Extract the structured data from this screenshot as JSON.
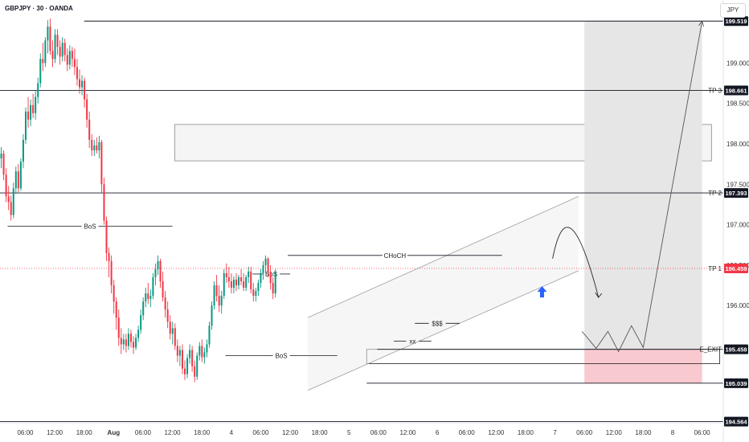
{
  "header": {
    "title": "GBPJPY · 30 · OANDA",
    "currency": "JPY"
  },
  "colors": {
    "up": "#089981",
    "down": "#f23645",
    "line": "#131722",
    "box_gray": "#e6e6e6",
    "box_red": "#f8c9cf",
    "price_red": "#f23645",
    "arrow_blue": "#2962ff"
  },
  "chart_data": {
    "type": "candlestick",
    "title": "GBPJPY · 30 · OANDA",
    "symbol": "GBPJPY",
    "timeframe": "30",
    "exchange": "OANDA",
    "currency": "JPY",
    "ylim": [
      194.55,
      199.78
    ],
    "y_ticks": [
      195.5,
      196.0,
      196.5,
      197.0,
      197.5,
      198.0,
      198.5,
      199.0
    ],
    "y_tick_labels": [
      "",
      "196.000",
      "196.500",
      "197.000",
      "197.500",
      "198.000",
      "198.500",
      "199.000"
    ],
    "x_ticks": [
      "06:00",
      "12:00",
      "18:00",
      "Aug",
      "06:00",
      "12:00",
      "18:00",
      "4",
      "06:00",
      "12:00",
      "18:00",
      "5",
      "06:00",
      "12:00",
      "6",
      "06:00",
      "12:00",
      "18:00",
      "7",
      "06:00",
      "12:00",
      "18:00",
      "8",
      "06:00"
    ],
    "x_tick_positions": [
      0.25,
      0.5,
      0.75,
      1.0,
      1.25,
      1.5,
      1.75,
      2.0,
      2.25,
      2.5,
      2.75,
      3.0,
      3.25,
      3.5,
      3.75,
      4.0,
      4.25,
      4.5,
      4.75,
      5.0,
      5.25,
      5.5,
      5.75,
      6.0
    ],
    "x_unit": "trading days since Jul 31 00:00",
    "xlim": [
      0.035,
      6.18
    ],
    "candle_width_days": 0.0208,
    "candles_ohlc": [
      [
        197.82,
        197.96,
        197.7,
        197.88
      ],
      [
        197.88,
        197.92,
        197.55,
        197.62
      ],
      [
        197.62,
        197.7,
        197.28,
        197.35
      ],
      [
        197.35,
        197.48,
        197.18,
        197.28
      ],
      [
        197.28,
        197.36,
        197.05,
        197.12
      ],
      [
        197.12,
        197.52,
        197.08,
        197.45
      ],
      [
        197.45,
        197.72,
        197.38,
        197.66
      ],
      [
        197.66,
        197.75,
        197.4,
        197.45
      ],
      [
        197.45,
        197.82,
        197.42,
        197.78
      ],
      [
        197.78,
        198.12,
        197.7,
        198.05
      ],
      [
        198.05,
        198.45,
        198.0,
        198.4
      ],
      [
        198.4,
        198.58,
        198.2,
        198.3
      ],
      [
        198.3,
        198.55,
        198.22,
        198.48
      ],
      [
        198.48,
        198.62,
        198.32,
        198.38
      ],
      [
        198.38,
        198.66,
        198.3,
        198.58
      ],
      [
        198.58,
        198.82,
        198.5,
        198.75
      ],
      [
        198.75,
        199.12,
        198.7,
        199.05
      ],
      [
        199.05,
        199.25,
        198.9,
        199.0
      ],
      [
        199.0,
        199.32,
        198.95,
        199.28
      ],
      [
        199.28,
        199.53,
        199.12,
        199.45
      ],
      [
        199.45,
        199.55,
        199.1,
        199.15
      ],
      [
        199.15,
        199.28,
        198.95,
        199.05
      ],
      [
        199.05,
        199.42,
        199.0,
        199.35
      ],
      [
        199.35,
        199.42,
        199.1,
        199.2
      ],
      [
        199.2,
        199.28,
        198.98,
        199.08
      ],
      [
        199.08,
        199.32,
        199.02,
        199.25
      ],
      [
        199.25,
        199.3,
        199.02,
        199.1
      ],
      [
        199.1,
        199.18,
        198.9,
        198.98
      ],
      [
        198.98,
        199.22,
        198.92,
        199.15
      ],
      [
        199.15,
        199.2,
        198.95,
        199.05
      ],
      [
        199.05,
        199.18,
        198.85,
        198.95
      ],
      [
        198.95,
        199.05,
        198.72,
        198.8
      ],
      [
        198.8,
        198.92,
        198.62,
        198.7
      ],
      [
        198.7,
        198.85,
        198.6,
        198.78
      ],
      [
        198.78,
        198.82,
        198.45,
        198.55
      ],
      [
        198.55,
        198.62,
        198.2,
        198.3
      ],
      [
        198.3,
        198.4,
        197.95,
        198.05
      ],
      [
        198.05,
        198.12,
        197.85,
        197.92
      ],
      [
        197.92,
        198.05,
        197.85,
        197.98
      ],
      [
        197.98,
        198.08,
        197.88,
        197.92
      ],
      [
        197.92,
        198.1,
        197.82,
        198.02
      ],
      [
        198.02,
        198.05,
        197.4,
        197.5
      ],
      [
        197.5,
        197.58,
        197.0,
        197.05
      ],
      [
        197.05,
        197.1,
        196.55,
        196.65
      ],
      [
        196.65,
        196.72,
        196.35,
        196.55
      ],
      [
        196.55,
        196.62,
        196.15,
        196.25
      ],
      [
        196.25,
        196.32,
        195.9,
        196.05
      ],
      [
        196.05,
        196.1,
        195.7,
        195.85
      ],
      [
        195.85,
        195.95,
        195.5,
        195.6
      ],
      [
        195.6,
        195.72,
        195.4,
        195.52
      ],
      [
        195.52,
        195.65,
        195.45,
        195.58
      ],
      [
        195.58,
        195.65,
        195.42,
        195.5
      ],
      [
        195.5,
        195.72,
        195.45,
        195.65
      ],
      [
        195.65,
        195.7,
        195.48,
        195.55
      ],
      [
        195.55,
        195.62,
        195.4,
        195.48
      ],
      [
        195.48,
        195.65,
        195.45,
        195.6
      ],
      [
        195.6,
        195.75,
        195.55,
        195.7
      ],
      [
        195.7,
        195.95,
        195.65,
        195.88
      ],
      [
        195.88,
        196.1,
        195.82,
        196.05
      ],
      [
        196.05,
        196.22,
        195.98,
        196.15
      ],
      [
        196.15,
        196.28,
        196.02,
        196.08
      ],
      [
        196.08,
        196.2,
        195.98,
        196.12
      ],
      [
        196.12,
        196.4,
        196.08,
        196.35
      ],
      [
        196.35,
        196.52,
        196.25,
        196.45
      ],
      [
        196.45,
        196.62,
        196.38,
        196.55
      ],
      [
        196.55,
        196.58,
        196.22,
        196.3
      ],
      [
        196.3,
        196.42,
        196.05,
        196.1
      ],
      [
        196.1,
        196.18,
        195.85,
        195.95
      ],
      [
        195.95,
        196.05,
        195.72,
        195.8
      ],
      [
        195.8,
        195.88,
        195.58,
        195.65
      ],
      [
        195.65,
        195.8,
        195.52,
        195.72
      ],
      [
        195.72,
        195.78,
        195.45,
        195.5
      ],
      [
        195.5,
        195.58,
        195.3,
        195.38
      ],
      [
        195.38,
        195.5,
        195.25,
        195.45
      ],
      [
        195.45,
        195.52,
        195.15,
        195.22
      ],
      [
        195.22,
        195.32,
        195.08,
        195.15
      ],
      [
        195.15,
        195.4,
        195.1,
        195.35
      ],
      [
        195.35,
        195.52,
        195.28,
        195.45
      ],
      [
        195.45,
        195.5,
        195.18,
        195.25
      ],
      [
        195.25,
        195.32,
        195.05,
        195.12
      ],
      [
        195.12,
        195.42,
        195.08,
        195.38
      ],
      [
        195.38,
        195.55,
        195.32,
        195.5
      ],
      [
        195.5,
        195.58,
        195.3,
        195.36
      ],
      [
        195.36,
        195.48,
        195.28,
        195.42
      ],
      [
        195.42,
        195.58,
        195.36,
        195.52
      ],
      [
        195.52,
        195.8,
        195.48,
        195.75
      ],
      [
        195.75,
        196.05,
        195.7,
        196.0
      ],
      [
        196.0,
        196.3,
        195.95,
        196.25
      ],
      [
        196.25,
        196.38,
        196.05,
        196.12
      ],
      [
        196.12,
        196.25,
        195.92,
        196.0
      ],
      [
        196.0,
        196.18,
        195.9,
        196.12
      ],
      [
        196.12,
        196.45,
        196.08,
        196.4
      ],
      [
        196.4,
        196.52,
        196.28,
        196.35
      ],
      [
        196.35,
        196.48,
        196.22,
        196.3
      ],
      [
        196.3,
        196.4,
        196.15,
        196.22
      ],
      [
        196.22,
        196.36,
        196.15,
        196.32
      ],
      [
        196.32,
        196.4,
        196.18,
        196.25
      ],
      [
        196.25,
        196.38,
        196.2,
        196.35
      ],
      [
        196.35,
        196.45,
        196.25,
        196.3
      ],
      [
        196.3,
        196.4,
        196.18,
        196.22
      ],
      [
        196.22,
        196.38,
        196.18,
        196.35
      ],
      [
        196.35,
        196.48,
        196.28,
        196.42
      ],
      [
        196.42,
        196.48,
        196.15,
        196.2
      ],
      [
        196.2,
        196.28,
        196.05,
        196.12
      ],
      [
        196.12,
        196.22,
        196.05,
        196.18
      ],
      [
        196.18,
        196.32,
        196.12,
        196.28
      ],
      [
        196.28,
        196.45,
        196.22,
        196.4
      ],
      [
        196.4,
        196.55,
        196.32,
        196.5
      ],
      [
        196.5,
        196.62,
        196.4,
        196.58
      ],
      [
        196.58,
        196.6,
        196.35,
        196.42
      ],
      [
        196.42,
        196.5,
        196.2,
        196.28
      ],
      [
        196.28,
        196.35,
        196.08,
        196.15
      ],
      [
        196.15,
        196.45,
        196.1,
        196.42
      ]
    ],
    "horizontal_levels": [
      {
        "label": "",
        "value": 199.519,
        "x_start": 0.75
      },
      {
        "label": "TP 3",
        "value": 198.661
      },
      {
        "label": "TP 2",
        "value": 197.393
      },
      {
        "label": "TP 1",
        "value": 196.459
      },
      {
        "label": "E_EXIT",
        "value": 195.458,
        "x_start": 3.24
      },
      {
        "label": "",
        "value": 195.039,
        "x_start": 3.15
      },
      {
        "label": "",
        "value": 194.564
      }
    ],
    "price_tags": [
      {
        "value": 199.519,
        "text": "199.519"
      },
      {
        "value": 198.661,
        "text": "198.661"
      },
      {
        "value": 197.393,
        "text": "197.393"
      },
      {
        "value": 196.459,
        "text": "196.459",
        "current": true
      },
      {
        "value": 195.458,
        "text": "195.458"
      },
      {
        "value": 195.039,
        "text": "195.039"
      },
      {
        "value": 194.564,
        "text": "194.564"
      }
    ],
    "annotations": [
      {
        "text": "BoS",
        "kind": "level",
        "value": 196.98,
        "x_start": 0.1,
        "x_end": 1.5
      },
      {
        "text": "BoS",
        "kind": "level",
        "value": 196.39,
        "x_start": 2.18,
        "x_end": 2.5
      },
      {
        "text": "BoS",
        "kind": "level",
        "value": 195.38,
        "x_start": 1.95,
        "x_end": 2.9
      },
      {
        "text": "CHoCH",
        "kind": "level",
        "value": 196.62,
        "x_start": 2.48,
        "x_end": 4.3
      },
      {
        "text": "$$$",
        "kind": "level",
        "value": 195.78,
        "x_start": 3.56,
        "x_end": 3.94
      },
      {
        "text": "xx",
        "kind": "level",
        "value": 195.56,
        "x_start": 3.38,
        "x_end": 3.7
      }
    ],
    "zones": [
      {
        "name": "supply-zone",
        "y_low": 197.79,
        "y_high": 198.24,
        "x_start": 1.52,
        "x_end": 6.08
      },
      {
        "name": "take-profit-zone",
        "y_low": 195.458,
        "y_high": 199.519,
        "x_start": 5.0,
        "x_end": 6.0
      },
      {
        "name": "stop-zone",
        "y_low": 195.039,
        "y_high": 195.458,
        "x_start": 5.0,
        "x_end": 6.0
      },
      {
        "name": "range-box",
        "y_low": 195.28,
        "y_high": 195.458,
        "x_start": 3.15,
        "x_end": 6.15
      }
    ],
    "channel": {
      "lower": [
        [
          2.65,
          194.95
        ],
        [
          4.95,
          196.43
        ]
      ],
      "upper": [
        [
          2.65,
          195.85
        ],
        [
          4.95,
          197.35
        ]
      ]
    },
    "projection": [
      [
        4.98,
        195.68
      ],
      [
        5.1,
        195.47
      ],
      [
        5.2,
        195.68
      ],
      [
        5.29,
        195.43
      ],
      [
        5.4,
        195.75
      ],
      [
        5.5,
        195.48
      ],
      [
        6.0,
        199.52
      ]
    ],
    "arrow_curve": [
      [
        4.73,
        196.58
      ],
      [
        4.86,
        197.25
      ],
      [
        5.12,
        196.1
      ]
    ],
    "blue_arrow": {
      "x": 4.64,
      "value": 196.15
    }
  }
}
